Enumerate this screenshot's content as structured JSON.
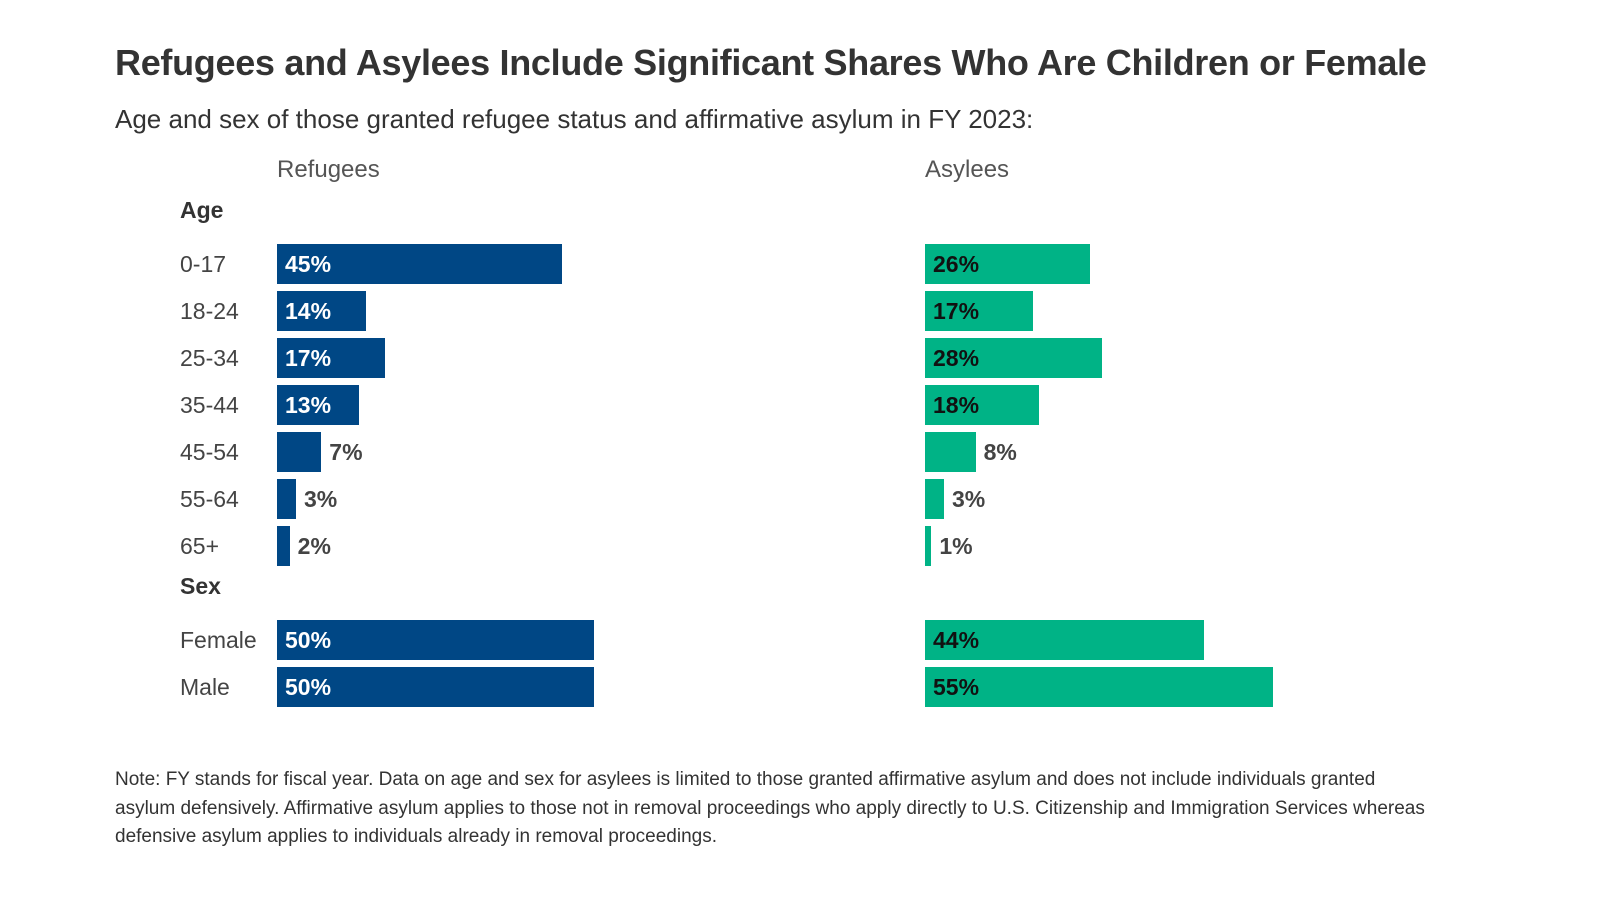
{
  "title": "Refugees and Asylees Include Significant Shares Who Are Children or Female",
  "subtitle": "Age and sex of those granted refugee status and affirmative asylum in FY 2023:",
  "note": "Note: FY stands for fiscal year. Data on age and sex for asylees is limited to those granted affirmative asylum and does not include individuals granted asylum defensively. Affirmative asylum applies to those not in removal proceedings who apply directly to U.S. Citizenship and Immigration Services whereas defensive asylum applies to individuals already in removal proceedings.",
  "chart_data": {
    "type": "bar",
    "orientation": "horizontal",
    "groups": [
      {
        "label": "Age",
        "categories": [
          "0-17",
          "18-24",
          "25-34",
          "35-44",
          "45-54",
          "55-64",
          "65+"
        ]
      },
      {
        "label": "Sex",
        "categories": [
          "Female",
          "Male"
        ]
      }
    ],
    "series": [
      {
        "name": "Refugees",
        "color": "#004785",
        "label_color_inside": "#ffffff",
        "values": [
          45,
          14,
          17,
          13,
          7,
          3,
          2,
          50,
          50
        ]
      },
      {
        "name": "Asylees",
        "color": "#00B386",
        "label_color_inside": "#111111",
        "values": [
          26,
          17,
          28,
          18,
          8,
          3,
          1,
          44,
          55
        ]
      }
    ],
    "unit": "%",
    "grid": false,
    "legend": "none"
  }
}
